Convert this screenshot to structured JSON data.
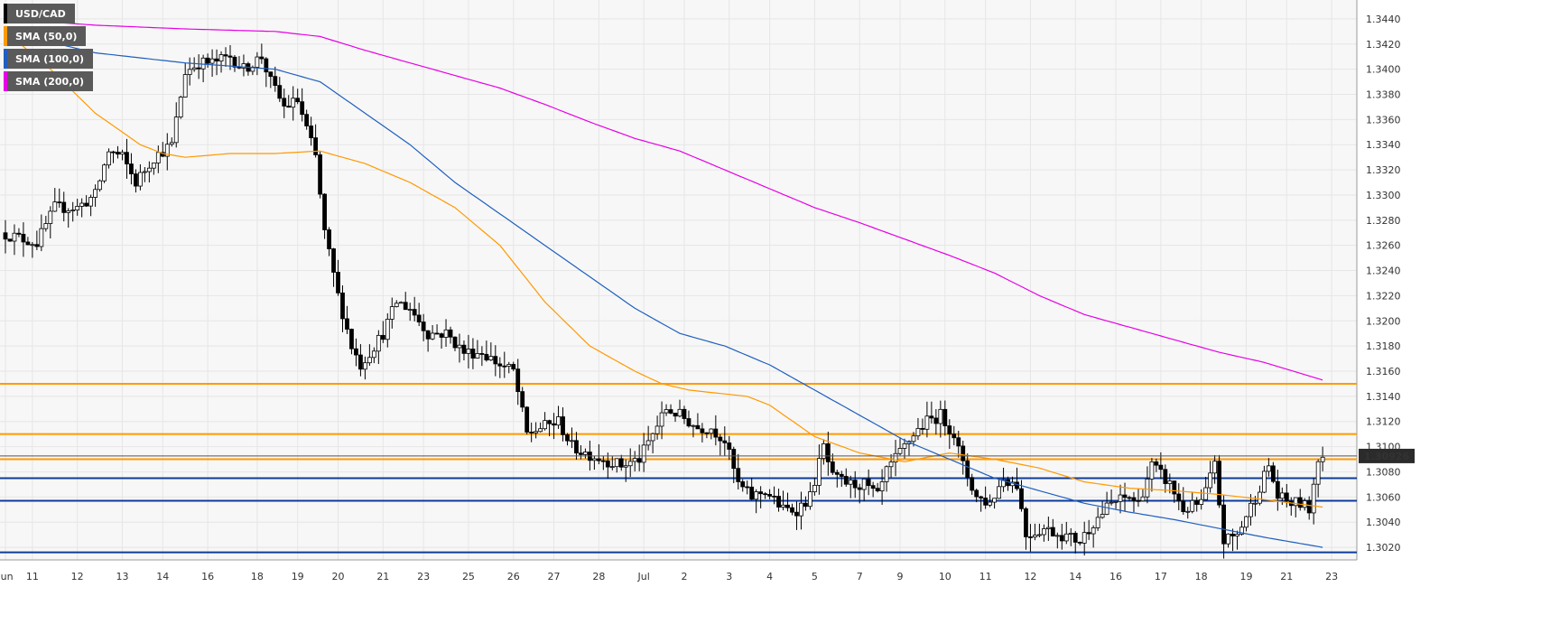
{
  "chart_data": {
    "type": "candlestick",
    "symbol": "USD/CAD",
    "legend": [
      {
        "label": "USD/CAD",
        "color": "#000000"
      },
      {
        "label": "SMA (50,0)",
        "color": "#ff9900"
      },
      {
        "label": "SMA (100,0)",
        "color": "#1f5fbf"
      },
      {
        "label": "SMA (200,0)",
        "color": "#e600e6"
      }
    ],
    "last_price": "1.30926",
    "ylim": [
      1.301,
      1.3455
    ],
    "y_ticks": [
      "1.3020",
      "1.3040",
      "1.3060",
      "1.3080",
      "1.3100",
      "1.3120",
      "1.3140",
      "1.3160",
      "1.3180",
      "1.3200",
      "1.3220",
      "1.3240",
      "1.3260",
      "1.3280",
      "1.3300",
      "1.3320",
      "1.3340",
      "1.3360",
      "1.3380",
      "1.3400",
      "1.3420",
      "1.3440"
    ],
    "x_ticks": [
      {
        "label": "Jun",
        "i": 0
      },
      {
        "label": "11",
        "i": 6
      },
      {
        "label": "12",
        "i": 16
      },
      {
        "label": "13",
        "i": 26
      },
      {
        "label": "14",
        "i": 35
      },
      {
        "label": "16",
        "i": 45
      },
      {
        "label": "18",
        "i": 56
      },
      {
        "label": "19",
        "i": 65
      },
      {
        "label": "20",
        "i": 74
      },
      {
        "label": "21",
        "i": 84
      },
      {
        "label": "23",
        "i": 93
      },
      {
        "label": "25",
        "i": 103
      },
      {
        "label": "26",
        "i": 113
      },
      {
        "label": "27",
        "i": 122
      },
      {
        "label": "28",
        "i": 132
      },
      {
        "label": "Jul",
        "i": 142
      },
      {
        "label": "2",
        "i": 151
      },
      {
        "label": "3",
        "i": 161
      },
      {
        "label": "4",
        "i": 170
      },
      {
        "label": "5",
        "i": 180
      },
      {
        "label": "7",
        "i": 190
      },
      {
        "label": "9",
        "i": 199
      },
      {
        "label": "10",
        "i": 209
      },
      {
        "label": "11",
        "i": 218
      },
      {
        "label": "12",
        "i": 228
      },
      {
        "label": "14",
        "i": 238
      },
      {
        "label": "16",
        "i": 247
      },
      {
        "label": "17",
        "i": 257
      },
      {
        "label": "18",
        "i": 266
      },
      {
        "label": "19",
        "i": 276
      },
      {
        "label": "21",
        "i": 285
      },
      {
        "label": "23",
        "i": 295
      }
    ],
    "grid": true,
    "horizontal_levels": [
      {
        "value": 1.315,
        "color": "#ff9900"
      },
      {
        "value": 1.311,
        "color": "#ff9900"
      },
      {
        "value": 1.309,
        "color": "#ff9900"
      },
      {
        "value": 1.3075,
        "color": "#0d3b99"
      },
      {
        "value": 1.3057,
        "color": "#0d3b99"
      },
      {
        "value": 1.3016,
        "color": "#0d3b99"
      }
    ],
    "path_anchors": [
      [
        0,
        1.327
      ],
      [
        5,
        1.3265
      ],
      [
        8,
        1.3262
      ],
      [
        12,
        1.329
      ],
      [
        17,
        1.329
      ],
      [
        21,
        1.33
      ],
      [
        24,
        1.3335
      ],
      [
        27,
        1.333
      ],
      [
        30,
        1.331
      ],
      [
        34,
        1.333
      ],
      [
        38,
        1.334
      ],
      [
        41,
        1.3398
      ],
      [
        44,
        1.3405
      ],
      [
        47,
        1.3405
      ],
      [
        51,
        1.341
      ],
      [
        54,
        1.34
      ],
      [
        58,
        1.341
      ],
      [
        60,
        1.339
      ],
      [
        63,
        1.337
      ],
      [
        66,
        1.3375
      ],
      [
        70,
        1.333
      ],
      [
        72,
        1.327
      ],
      [
        75,
        1.322
      ],
      [
        78,
        1.318
      ],
      [
        80,
        1.3165
      ],
      [
        82,
        1.3175
      ],
      [
        85,
        1.319
      ],
      [
        88,
        1.3215
      ],
      [
        91,
        1.321
      ],
      [
        95,
        1.319
      ],
      [
        99,
        1.319
      ],
      [
        103,
        1.3175
      ],
      [
        107,
        1.3175
      ],
      [
        111,
        1.3165
      ],
      [
        114,
        1.316
      ],
      [
        117,
        1.311
      ],
      [
        120,
        1.3115
      ],
      [
        124,
        1.312
      ],
      [
        127,
        1.31
      ],
      [
        130,
        1.3095
      ],
      [
        134,
        1.309
      ],
      [
        138,
        1.3085
      ],
      [
        142,
        1.309
      ],
      [
        145,
        1.311
      ],
      [
        148,
        1.313
      ],
      [
        151,
        1.3125
      ],
      [
        155,
        1.3115
      ],
      [
        158,
        1.3115
      ],
      [
        161,
        1.3105
      ],
      [
        164,
        1.307
      ],
      [
        167,
        1.306
      ],
      [
        170,
        1.3065
      ],
      [
        174,
        1.305
      ],
      [
        177,
        1.305
      ],
      [
        180,
        1.306
      ],
      [
        183,
        1.31
      ],
      [
        185,
        1.3075
      ],
      [
        189,
        1.307
      ],
      [
        192,
        1.307
      ],
      [
        195,
        1.306
      ],
      [
        197,
        1.308
      ],
      [
        200,
        1.3095
      ],
      [
        203,
        1.311
      ],
      [
        206,
        1.312
      ],
      [
        209,
        1.3125
      ],
      [
        212,
        1.311
      ],
      [
        214,
        1.3085
      ],
      [
        217,
        1.306
      ],
      [
        220,
        1.3055
      ],
      [
        223,
        1.3075
      ],
      [
        226,
        1.307
      ],
      [
        228,
        1.303
      ],
      [
        232,
        1.3035
      ],
      [
        236,
        1.303
      ],
      [
        240,
        1.3025
      ],
      [
        243,
        1.304
      ],
      [
        247,
        1.3055
      ],
      [
        251,
        1.306
      ],
      [
        253,
        1.3055
      ],
      [
        256,
        1.3085
      ],
      [
        260,
        1.307
      ],
      [
        263,
        1.305
      ],
      [
        267,
        1.3055
      ],
      [
        270,
        1.3085
      ],
      [
        272,
        1.3025
      ],
      [
        275,
        1.303
      ],
      [
        279,
        1.306
      ],
      [
        282,
        1.3085
      ],
      [
        284,
        1.306
      ],
      [
        287,
        1.3055
      ],
      [
        289,
        1.3055
      ],
      [
        291,
        1.305
      ],
      [
        293,
        1.3092
      ]
    ],
    "candle_count": 294,
    "candle_spacing": 4.98,
    "sma50_anchors": [
      [
        0,
        1.343
      ],
      [
        10,
        1.34
      ],
      [
        20,
        1.3365
      ],
      [
        30,
        1.334
      ],
      [
        35,
        1.3333
      ],
      [
        40,
        1.333
      ],
      [
        50,
        1.3333
      ],
      [
        60,
        1.3333
      ],
      [
        70,
        1.3335
      ],
      [
        80,
        1.3325
      ],
      [
        90,
        1.331
      ],
      [
        100,
        1.329
      ],
      [
        110,
        1.326
      ],
      [
        120,
        1.3215
      ],
      [
        130,
        1.318
      ],
      [
        140,
        1.316
      ],
      [
        146,
        1.315
      ],
      [
        152,
        1.3145
      ],
      [
        165,
        1.314
      ],
      [
        170,
        1.3133
      ],
      [
        180,
        1.3108
      ],
      [
        190,
        1.3095
      ],
      [
        200,
        1.3088
      ],
      [
        210,
        1.3095
      ],
      [
        220,
        1.309
      ],
      [
        230,
        1.3083
      ],
      [
        240,
        1.3072
      ],
      [
        250,
        1.3067
      ],
      [
        260,
        1.3065
      ],
      [
        270,
        1.3062
      ],
      [
        280,
        1.3058
      ],
      [
        293,
        1.3052
      ]
    ],
    "sma100_anchors": [
      [
        0,
        1.343
      ],
      [
        20,
        1.3413
      ],
      [
        40,
        1.3405
      ],
      [
        60,
        1.34
      ],
      [
        70,
        1.339
      ],
      [
        80,
        1.3365
      ],
      [
        90,
        1.334
      ],
      [
        100,
        1.331
      ],
      [
        110,
        1.3285
      ],
      [
        120,
        1.326
      ],
      [
        130,
        1.3235
      ],
      [
        140,
        1.321
      ],
      [
        150,
        1.319
      ],
      [
        160,
        1.318
      ],
      [
        170,
        1.3165
      ],
      [
        180,
        1.3145
      ],
      [
        190,
        1.3125
      ],
      [
        200,
        1.3105
      ],
      [
        210,
        1.309
      ],
      [
        220,
        1.3075
      ],
      [
        230,
        1.3065
      ],
      [
        240,
        1.3055
      ],
      [
        250,
        1.3048
      ],
      [
        260,
        1.3042
      ],
      [
        270,
        1.3035
      ],
      [
        280,
        1.3028
      ],
      [
        293,
        1.302
      ]
    ],
    "sma200_anchors": [
      [
        0,
        1.344
      ],
      [
        20,
        1.3435
      ],
      [
        40,
        1.3432
      ],
      [
        60,
        1.343
      ],
      [
        70,
        1.3426
      ],
      [
        80,
        1.3415
      ],
      [
        90,
        1.3405
      ],
      [
        100,
        1.3395
      ],
      [
        110,
        1.3385
      ],
      [
        120,
        1.3372
      ],
      [
        130,
        1.3358
      ],
      [
        140,
        1.3345
      ],
      [
        150,
        1.3335
      ],
      [
        160,
        1.332
      ],
      [
        170,
        1.3305
      ],
      [
        180,
        1.329
      ],
      [
        190,
        1.3278
      ],
      [
        200,
        1.3265
      ],
      [
        210,
        1.3252
      ],
      [
        220,
        1.3238
      ],
      [
        230,
        1.322
      ],
      [
        240,
        1.3205
      ],
      [
        250,
        1.3195
      ],
      [
        260,
        1.3185
      ],
      [
        270,
        1.3175
      ],
      [
        280,
        1.3167
      ],
      [
        293,
        1.3153
      ]
    ]
  }
}
